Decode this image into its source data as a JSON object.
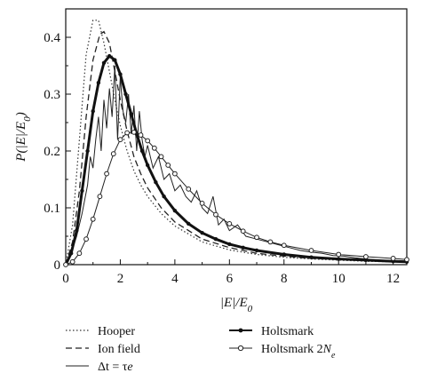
{
  "chart_data": {
    "type": "line",
    "xlabel": "|E|/E_0",
    "ylabel": "P(|E|/E_0)",
    "xlim": [
      0,
      12.5
    ],
    "ylim": [
      0,
      0.45
    ],
    "x_ticks": [
      0,
      2,
      4,
      6,
      8,
      10,
      12
    ],
    "y_ticks": [
      0,
      0.1,
      0.2,
      0.3,
      0.4
    ],
    "x_tick_labels": [
      "0",
      "2",
      "4",
      "6",
      "8",
      "10",
      "12"
    ],
    "y_tick_labels": [
      "0",
      "0.1",
      "0.2",
      "0.3",
      "0.4"
    ],
    "grid": false,
    "legend_position": "below plot, two columns",
    "series": [
      {
        "name": "Hooper",
        "style": "dotted",
        "x": [
          0,
          0.25,
          0.5,
          0.75,
          1.0,
          1.2,
          1.4,
          1.6,
          1.8,
          2.0,
          2.25,
          2.5,
          2.75,
          3.0,
          3.5,
          4.0,
          5.0,
          6.0,
          7.0,
          8.0,
          9.0,
          10.0,
          11.0,
          12.0,
          12.5
        ],
        "values": [
          0,
          0.07,
          0.22,
          0.37,
          0.43,
          0.43,
          0.39,
          0.34,
          0.29,
          0.245,
          0.2,
          0.165,
          0.14,
          0.12,
          0.09,
          0.068,
          0.04,
          0.026,
          0.018,
          0.013,
          0.01,
          0.008,
          0.006,
          0.005,
          0.004
        ]
      },
      {
        "name": "Ion field",
        "style": "dashed",
        "x": [
          0,
          0.25,
          0.5,
          0.75,
          1.0,
          1.25,
          1.4,
          1.6,
          1.8,
          2.0,
          2.25,
          2.5,
          2.75,
          3.0,
          3.5,
          4.0,
          5.0,
          6.0,
          7.0,
          8.0,
          9.0,
          10.0,
          11.0,
          12.0,
          12.5
        ],
        "values": [
          0,
          0.04,
          0.13,
          0.26,
          0.36,
          0.405,
          0.41,
          0.39,
          0.34,
          0.29,
          0.235,
          0.19,
          0.16,
          0.135,
          0.1,
          0.075,
          0.045,
          0.03,
          0.02,
          0.015,
          0.011,
          0.009,
          0.007,
          0.006,
          0.005
        ]
      },
      {
        "name": "Δt = τ_e",
        "style": "solid-noisy",
        "x": [
          0,
          0.2,
          0.4,
          0.6,
          0.8,
          0.9,
          1.0,
          1.1,
          1.2,
          1.3,
          1.4,
          1.5,
          1.6,
          1.7,
          1.8,
          1.9,
          2.0,
          2.1,
          2.2,
          2.3,
          2.4,
          2.5,
          2.6,
          2.7,
          2.8,
          2.9,
          3.0,
          3.2,
          3.4,
          3.6,
          3.8,
          4.0,
          4.2,
          4.4,
          4.6,
          4.8,
          5.0,
          5.2,
          5.4,
          5.6,
          5.8,
          6.0,
          6.3,
          6.6,
          7.0,
          7.4,
          7.8,
          8.2,
          8.6,
          9.0,
          9.4,
          9.8,
          10.2,
          10.6,
          11.0,
          11.5,
          12.0,
          12.5
        ],
        "values": [
          0,
          0.02,
          0.05,
          0.09,
          0.14,
          0.19,
          0.17,
          0.22,
          0.26,
          0.2,
          0.29,
          0.24,
          0.31,
          0.26,
          0.35,
          0.22,
          0.33,
          0.27,
          0.25,
          0.3,
          0.23,
          0.28,
          0.2,
          0.27,
          0.22,
          0.19,
          0.21,
          0.17,
          0.19,
          0.15,
          0.16,
          0.13,
          0.14,
          0.12,
          0.11,
          0.13,
          0.1,
          0.09,
          0.12,
          0.07,
          0.08,
          0.06,
          0.07,
          0.05,
          0.045,
          0.04,
          0.035,
          0.03,
          0.025,
          0.022,
          0.02,
          0.016,
          0.015,
          0.012,
          0.01,
          0.008,
          0.006,
          0.005
        ]
      },
      {
        "name": "Holtsmark",
        "style": "thick-solid-filled-markers",
        "x": [
          0,
          0.2,
          0.4,
          0.6,
          0.8,
          1.0,
          1.2,
          1.4,
          1.6,
          1.8,
          2.0,
          2.2,
          2.4,
          2.6,
          2.8,
          3.0,
          3.3,
          3.6,
          4.0,
          4.5,
          5.0,
          5.5,
          6.0,
          6.5,
          7.0,
          8.0,
          9.0,
          10.0,
          11.0,
          12.0,
          12.5
        ],
        "values": [
          0,
          0.02,
          0.06,
          0.13,
          0.2,
          0.27,
          0.32,
          0.355,
          0.367,
          0.36,
          0.335,
          0.3,
          0.265,
          0.23,
          0.2,
          0.175,
          0.145,
          0.12,
          0.095,
          0.072,
          0.056,
          0.045,
          0.036,
          0.03,
          0.025,
          0.018,
          0.013,
          0.01,
          0.008,
          0.006,
          0.005
        ]
      },
      {
        "name": "Holtsmark 2N_e",
        "style": "solid-open-markers",
        "x": [
          0,
          0.25,
          0.5,
          0.75,
          1.0,
          1.25,
          1.5,
          1.75,
          2.0,
          2.25,
          2.5,
          2.75,
          3.0,
          3.25,
          3.5,
          3.75,
          4.0,
          4.5,
          5.0,
          5.5,
          6.0,
          6.5,
          7.0,
          7.5,
          8.0,
          9.0,
          10.0,
          11.0,
          12.0,
          12.5
        ],
        "values": [
          0,
          0.005,
          0.02,
          0.045,
          0.08,
          0.12,
          0.16,
          0.195,
          0.22,
          0.232,
          0.233,
          0.228,
          0.218,
          0.205,
          0.19,
          0.175,
          0.16,
          0.133,
          0.108,
          0.088,
          0.072,
          0.059,
          0.048,
          0.04,
          0.034,
          0.025,
          0.018,
          0.014,
          0.011,
          0.009
        ]
      }
    ]
  },
  "legend": [
    {
      "label": "Hooper",
      "italic_sub": ""
    },
    {
      "label": "Holtsmark",
      "italic_sub": ""
    },
    {
      "label": "Ion field",
      "italic_sub": ""
    },
    {
      "label": "Holtsmark 2",
      "italic_sub": "N_e"
    },
    {
      "label": "Δt = τ",
      "italic_sub": "e"
    }
  ]
}
